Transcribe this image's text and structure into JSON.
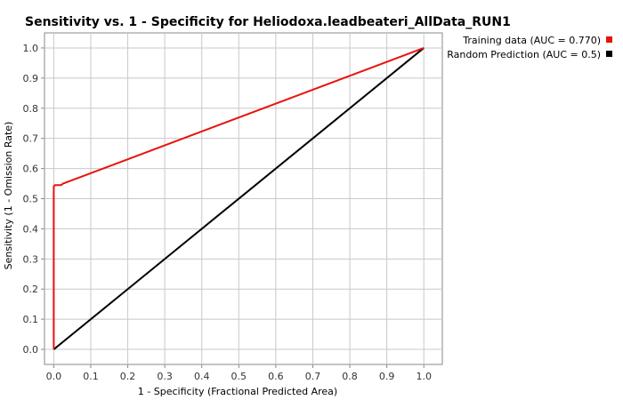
{
  "chart_data": {
    "type": "line",
    "title": "Sensitivity vs. 1 - Specificity for Heliodoxa.leadbeateri_AllData_RUN1",
    "xlabel": "1 - Specificity  (Fractional Predicted Area)",
    "ylabel": "Sensitivity  (1 - Omission Rate)",
    "xlim": [
      -0.025,
      1.05
    ],
    "ylim": [
      -0.05,
      1.05
    ],
    "xticks": [
      "0.0",
      "0.1",
      "0.2",
      "0.3",
      "0.4",
      "0.5",
      "0.6",
      "0.7",
      "0.8",
      "0.9",
      "1.0"
    ],
    "yticks": [
      "0.0",
      "0.1",
      "0.2",
      "0.3",
      "0.4",
      "0.5",
      "0.6",
      "0.7",
      "0.8",
      "0.9",
      "1.0"
    ],
    "grid": true,
    "legend_position": "top-right",
    "series": [
      {
        "name": "Training data (AUC = 0.770)",
        "color": "#e8120c",
        "points": [
          [
            0.0,
            0.0
          ],
          [
            0.0,
            0.54
          ],
          [
            0.003,
            0.545
          ],
          [
            0.02,
            0.545
          ],
          [
            0.025,
            0.55
          ],
          [
            1.0,
            1.0
          ]
        ]
      },
      {
        "name": "Random Prediction (AUC = 0.5)",
        "color": "#000000",
        "points": [
          [
            0.0,
            0.0
          ],
          [
            1.0,
            1.0
          ]
        ]
      }
    ]
  }
}
